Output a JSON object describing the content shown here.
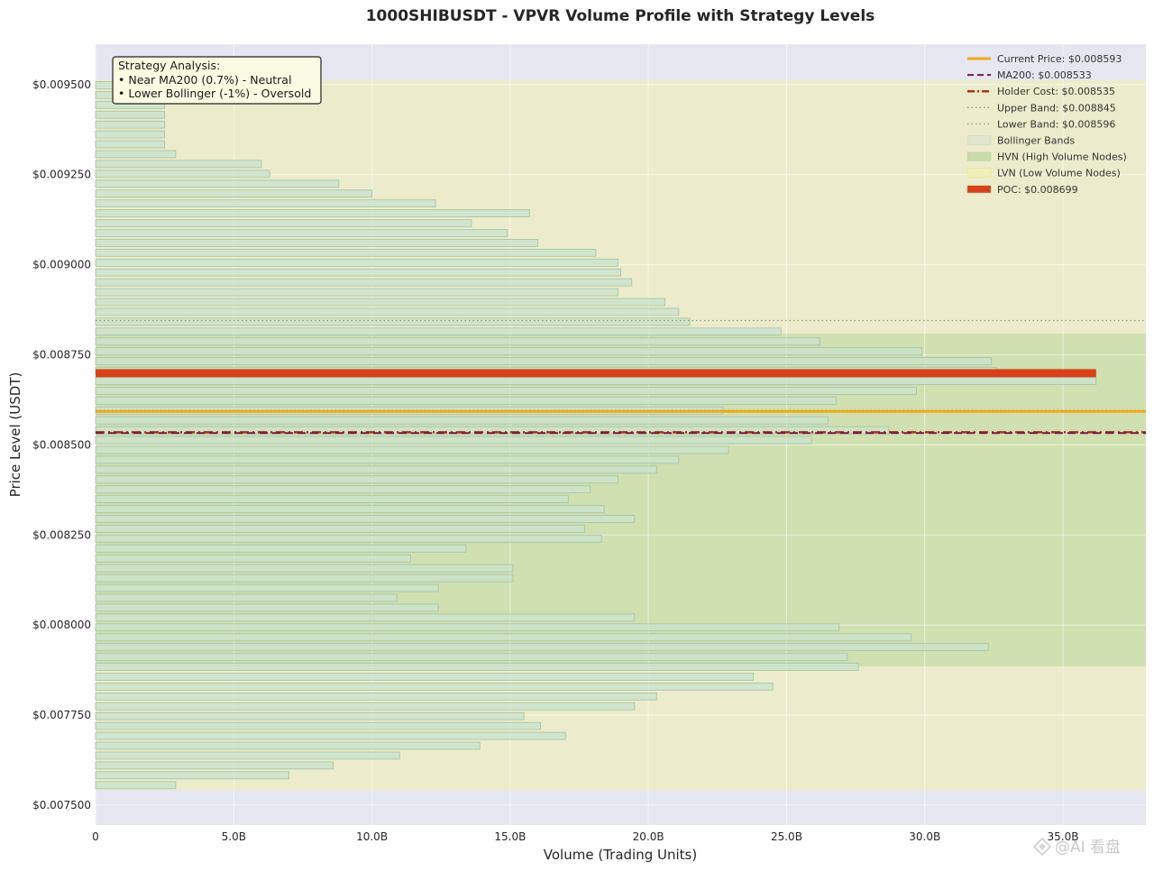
{
  "chart_data": {
    "type": "bar",
    "orientation": "horizontal",
    "title": "1000SHIBUSDT - VPVR Volume Profile with Strategy Levels",
    "xlabel": "Volume (Trading Units)",
    "ylabel": "Price Level (USDT)",
    "xlim": [
      0,
      38
    ],
    "ylim": [
      0.007445,
      0.009612
    ],
    "x_ticks": [
      0,
      5,
      10,
      15,
      20,
      25,
      30,
      35
    ],
    "x_tick_labels": [
      "0",
      "5.0B",
      "10.0B",
      "15.0B",
      "20.0B",
      "25.0B",
      "30.0B",
      "35.0B"
    ],
    "y_ticks": [
      0.0075,
      0.00775,
      0.008,
      0.00825,
      0.0085,
      0.00875,
      0.009,
      0.00925,
      0.0095
    ],
    "y_tick_labels": [
      "$0.007500",
      "$0.007750",
      "$0.008000",
      "$0.008250",
      "$0.008500",
      "$0.008750",
      "$0.009000",
      "$0.009250",
      "$0.009500"
    ],
    "volume_unit": "B",
    "bins": {
      "price_min": 0.007542,
      "price_max": 0.009512,
      "volumes": [
        2.9,
        7.0,
        8.6,
        11.0,
        13.9,
        17.0,
        16.1,
        15.5,
        19.5,
        20.3,
        24.5,
        23.8,
        27.6,
        27.2,
        32.3,
        29.5,
        26.9,
        19.5,
        12.4,
        10.9,
        12.4,
        15.1,
        15.1,
        11.4,
        13.4,
        18.3,
        17.7,
        19.5,
        18.4,
        17.1,
        17.9,
        18.9,
        20.3,
        21.1,
        22.9,
        25.9,
        28.7,
        26.5,
        22.7,
        26.8,
        29.7,
        36.2,
        32.6,
        32.4,
        29.9,
        26.2,
        24.8,
        21.5,
        21.1,
        20.6,
        18.9,
        19.4,
        19.0,
        18.9,
        18.1,
        16.0,
        14.9,
        13.6,
        15.7,
        12.3,
        10.0,
        8.8,
        6.3,
        6.0,
        2.9,
        2.5,
        2.5,
        2.5,
        2.5,
        2.5,
        2.5,
        2.5
      ]
    },
    "levels": {
      "current_price": 0.008593,
      "ma200": 0.008533,
      "holder_cost": 0.008535,
      "upper_band": 0.008845,
      "lower_band": 0.008596,
      "poc": 0.008699,
      "poc_volume": 36.2
    },
    "bands": {
      "bollinger": [
        0.007542,
        0.009512
      ],
      "hvn": [
        0.007885,
        0.008809
      ],
      "hvn_xmax": 38
    },
    "legend": [
      {
        "label": "Current Price: $0.008593",
        "style": "solid",
        "color": "#f0a81c"
      },
      {
        "label": "MA200: $0.008533",
        "style": "dashed",
        "color": "#7a1840"
      },
      {
        "label": "Holder Cost: $0.008535",
        "style": "dashdot",
        "color": "#a8331c"
      },
      {
        "label": "Upper Band: $0.008845",
        "style": "dotted",
        "color": "#8a9a7a"
      },
      {
        "label": "Lower Band: $0.008596",
        "style": "dotted",
        "color": "#8a9a7a"
      },
      {
        "label": "Bollinger Bands",
        "style": "patch",
        "color": "#e2e6cf"
      },
      {
        "label": "HVN (High Volume Nodes)",
        "style": "patch",
        "color": "#c8dbaa"
      },
      {
        "label": "LVN (Low Volume Nodes)",
        "style": "hatch",
        "color": "#f0f0b8"
      },
      {
        "label": "POC: $0.008699",
        "style": "thick",
        "color": "#d7421a"
      }
    ],
    "legend_position": "top-right",
    "annotation": {
      "lines": [
        "Strategy Analysis:",
        "• Near MA200 (0.7%) - Neutral",
        "• Lower Bollinger (-1%) - Oversold"
      ]
    },
    "colors": {
      "axes_bg": "#e6e6f0",
      "bollinger_fill": "#ececcc",
      "hvn_fill": "#cddfae",
      "bar_fill": "#cde3cc",
      "bar_edge": "#a4c0a4",
      "poc_bar": "#d7421a",
      "current_price": "#f0a81c",
      "ma200": "#7a1840",
      "holder_cost": "#a8331c",
      "band_line": "#8a9a7a"
    }
  },
  "watermark": "@AI 看盘"
}
